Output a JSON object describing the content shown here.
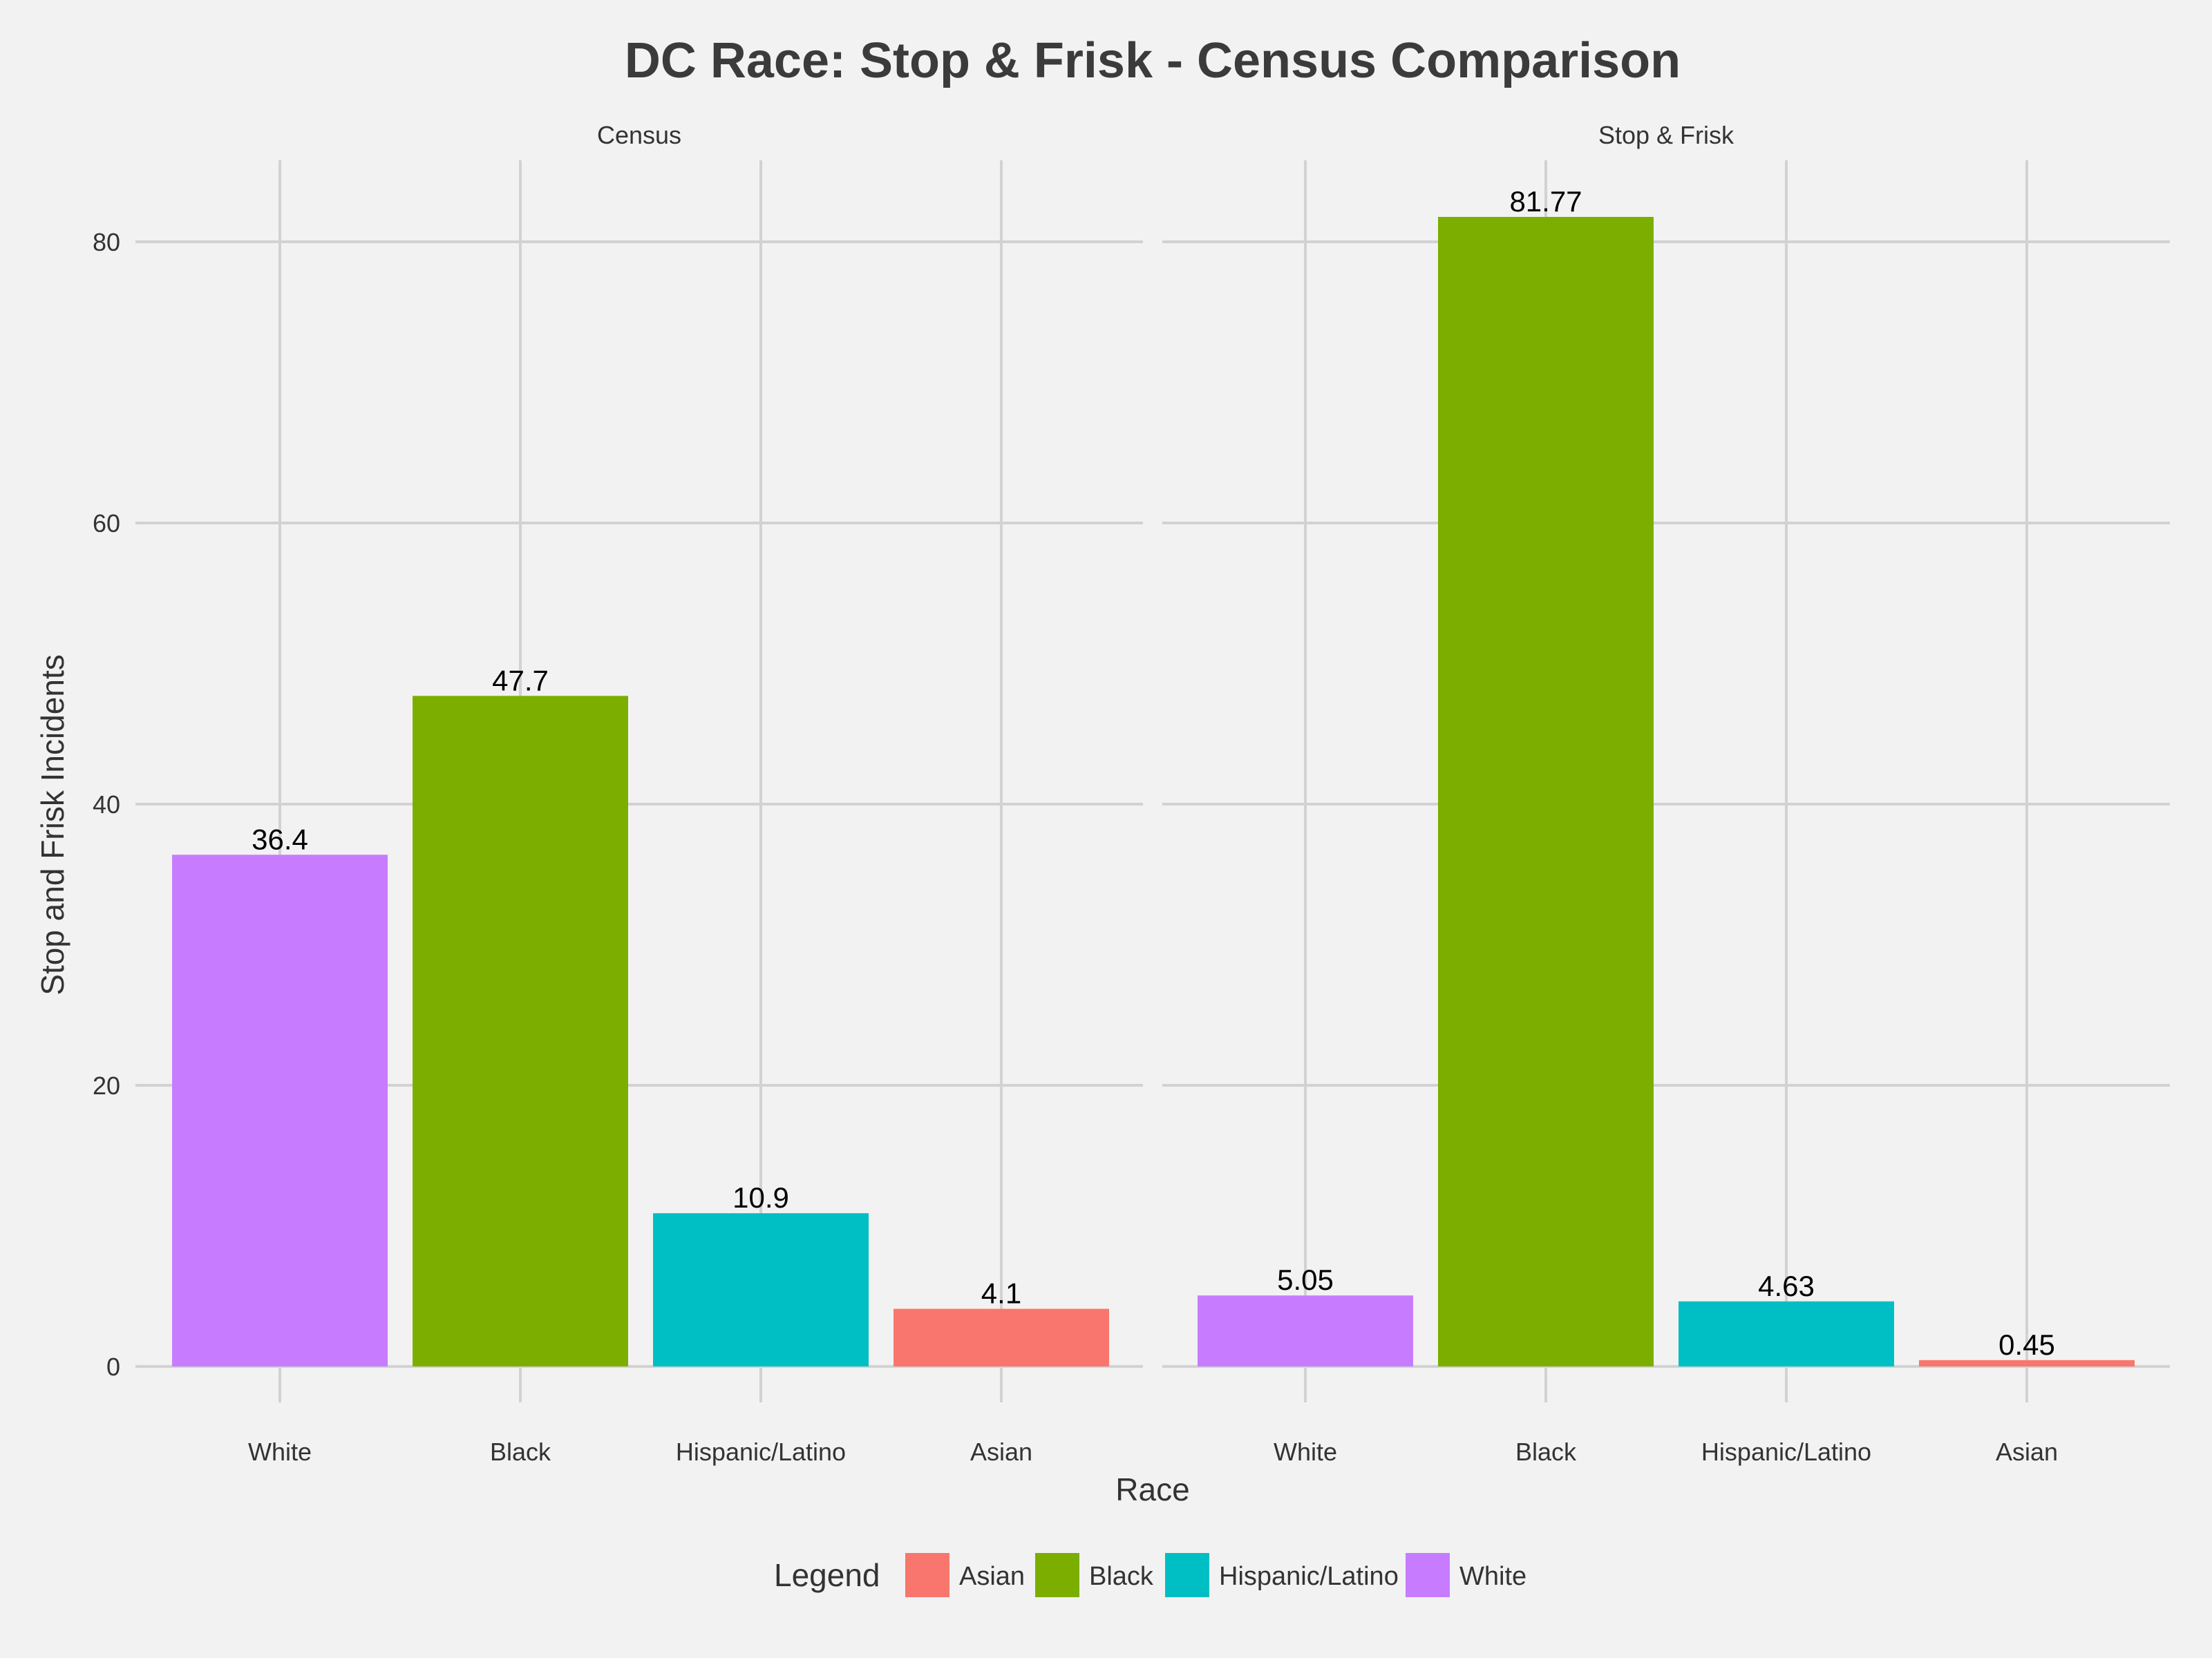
{
  "chart_data": {
    "type": "bar",
    "title": "DC Race: Stop & Frisk - Census Comparison",
    "xlabel": "Race",
    "ylabel": "Stop and Frisk Incidents",
    "ylim": [
      0,
      86
    ],
    "yticks": [
      0,
      20,
      40,
      60,
      80
    ],
    "categories": [
      "White",
      "Black",
      "Hispanic/Latino",
      "Asian"
    ],
    "facets": [
      {
        "name": "Census",
        "values": [
          36.4,
          47.7,
          10.9,
          4.1
        ],
        "labels": [
          "36.4",
          "47.7",
          "10.9",
          "4.1"
        ]
      },
      {
        "name": "Stop & Frisk",
        "values": [
          5.05,
          81.77,
          4.63,
          0.45
        ],
        "labels": [
          "5.05",
          "81.77",
          "4.63",
          "0.45"
        ]
      }
    ],
    "colors": {
      "White": "#c77cff",
      "Black": "#7cae00",
      "Hispanic/Latino": "#00bfc4",
      "Asian": "#f8766d"
    },
    "legend": {
      "title": "Legend",
      "position": "bottom",
      "items": [
        "Asian",
        "Black",
        "Hispanic/Latino",
        "White"
      ]
    },
    "grid": true
  }
}
